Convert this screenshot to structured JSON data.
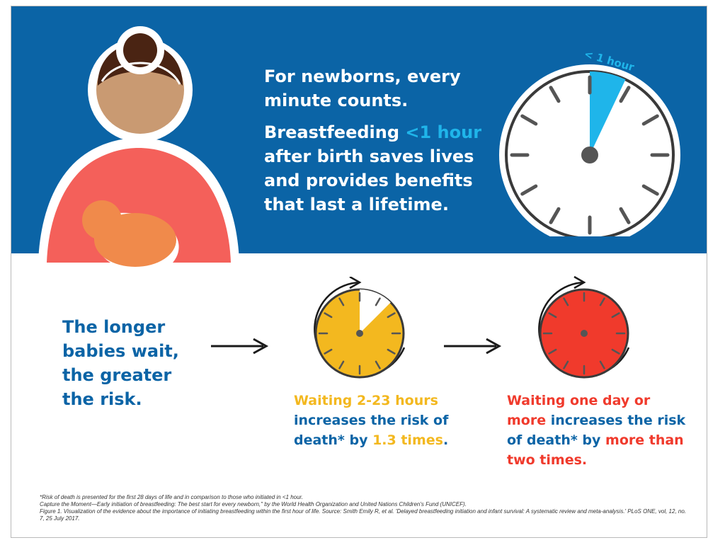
{
  "headline": {
    "line1": "For newborns, every minute counts.",
    "line2_prefix": "Breastfeeding ",
    "line2_accent": "<1 hour",
    "line2_suffix": " after birth saves lives and provides benefits that last a lifetime."
  },
  "big_clock": {
    "label": "< 1 hour",
    "accent_color": "#1fb5ea"
  },
  "risk_statement": "The longer babies wait, the greater the risk.",
  "yellow_card": {
    "accent_color": "#f3b81f",
    "text_accent": "Waiting 2-23 hours",
    "text_mid": " increases the risk of death* by ",
    "text_accent2": "1.3 times",
    "text_end": "."
  },
  "red_card": {
    "accent_color": "#f03a2c",
    "text_accent": "Waiting one day or more",
    "text_mid": " increases the risk of death* by ",
    "text_accent2": "more than two times",
    "text_end": "."
  },
  "footnotes": [
    "*Risk of death is presented for the first 28 days of life and in comparison to those who initiated in <1 hour.",
    "Capture the Moment—Early initiation of breastfeeding: The best start for every newborn,\" by the World Health Organization and United Nations Children's Fund (UNICEF).",
    "Figure 1. Visualization of the evidence about the importance of initiating breastfeeding within the first hour of life. Source: Smith Emily R, et al. 'Delayed breastfeeding initiation and infant survival: A systematic review and meta-analysis.' PLoS ONE, vol, 12, no. 7, 25 July 2017."
  ],
  "colors": {
    "blue_band": "#0b64a6",
    "body_blue": "#0b64a6",
    "mother_shirt": "#f4605a",
    "baby": "#f08a4b",
    "skin": "#c99a72",
    "hair": "#4a2413"
  }
}
